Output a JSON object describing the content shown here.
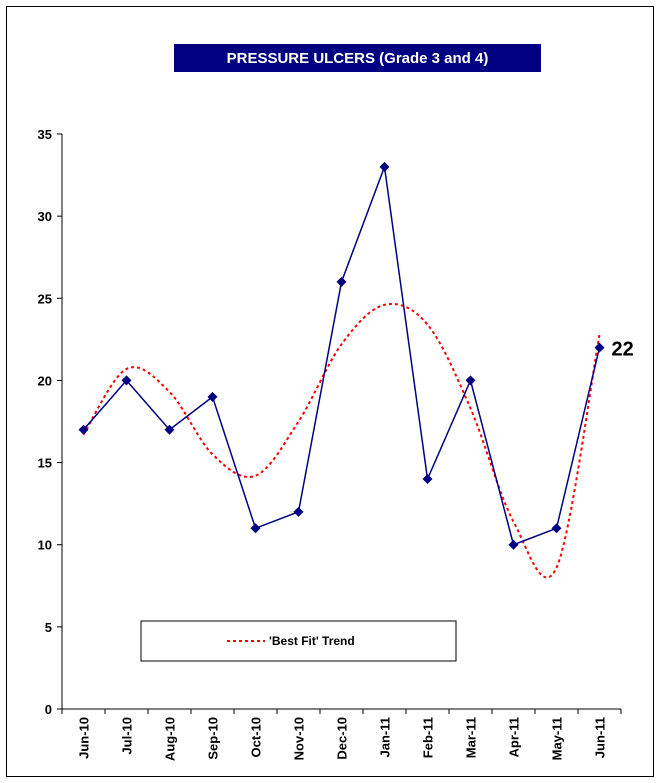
{
  "chart_data": {
    "type": "line",
    "title": "PRESSURE ULCERS (Grade 3 and 4)",
    "categories": [
      "Jun-10",
      "Jul-10",
      "Aug-10",
      "Sep-10",
      "Oct-10",
      "Nov-10",
      "Dec-10",
      "Jan-11",
      "Feb-11",
      "Mar-11",
      "Apr-11",
      "May-11",
      "Jun-11"
    ],
    "series": [
      {
        "name": "",
        "values": [
          17,
          20,
          17,
          19,
          11,
          12,
          26,
          33,
          14,
          20,
          10,
          11,
          22
        ],
        "color": "#000080",
        "marker": "diamond"
      }
    ],
    "trend": {
      "name": "'Best Fit' Trend",
      "color": "#ff0000",
      "style": "dotted",
      "values": [
        16.7,
        20.7,
        19.3,
        15.5,
        14.2,
        17.5,
        22.2,
        24.6,
        23.4,
        18.3,
        11.4,
        8.6,
        22.8
      ]
    },
    "last_point_label": "22",
    "yticks": [
      0,
      5,
      10,
      15,
      20,
      25,
      30,
      35
    ],
    "ylim": [
      0,
      35
    ],
    "xlabel": "",
    "ylabel": "",
    "grid": false,
    "legend": "bottom-left"
  }
}
